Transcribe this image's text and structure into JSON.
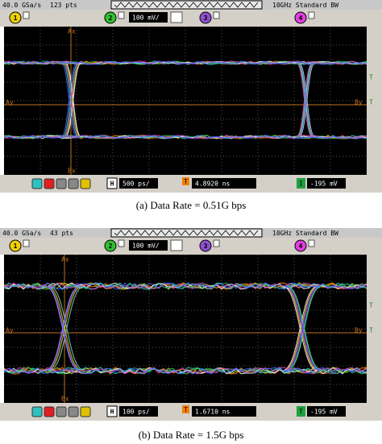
{
  "panels": [
    {
      "header": {
        "sample_rate": "40.0 GSa/s",
        "points": "123 pts",
        "bandwidth": "10GHz Standard BW"
      },
      "channels": [
        "1",
        "2",
        "3",
        "4"
      ],
      "scale": "100 mV/",
      "markers": {
        "ax": "Ax",
        "bx": "Bx",
        "ay": "Ay",
        "by": "By",
        "trigger": "T"
      },
      "footer": {
        "h": "H",
        "timebase": "500 ps/",
        "t": "T",
        "delay": "4.8920 ns",
        "i": "I",
        "trigger_level": "-195 mV"
      },
      "caption": "(a) Data Rate = 0.51G bps"
    },
    {
      "header": {
        "sample_rate": "40.0 GSa/s",
        "points": "43 pts",
        "bandwidth": "10GHz Standard BW"
      },
      "channels": [
        "1",
        "2",
        "3",
        "4"
      ],
      "scale": "100 mV/",
      "markers": {
        "ax": "Ax",
        "bx": "Bx",
        "ay": "Ay",
        "by": "By",
        "trigger": "T"
      },
      "footer": {
        "h": "H",
        "timebase": "100 ps/",
        "t": "T",
        "delay": "1.6710 ns",
        "i": "T",
        "trigger_level": "-195 mV"
      },
      "caption": "(b) Data Rate = 1.5G bps"
    }
  ]
}
